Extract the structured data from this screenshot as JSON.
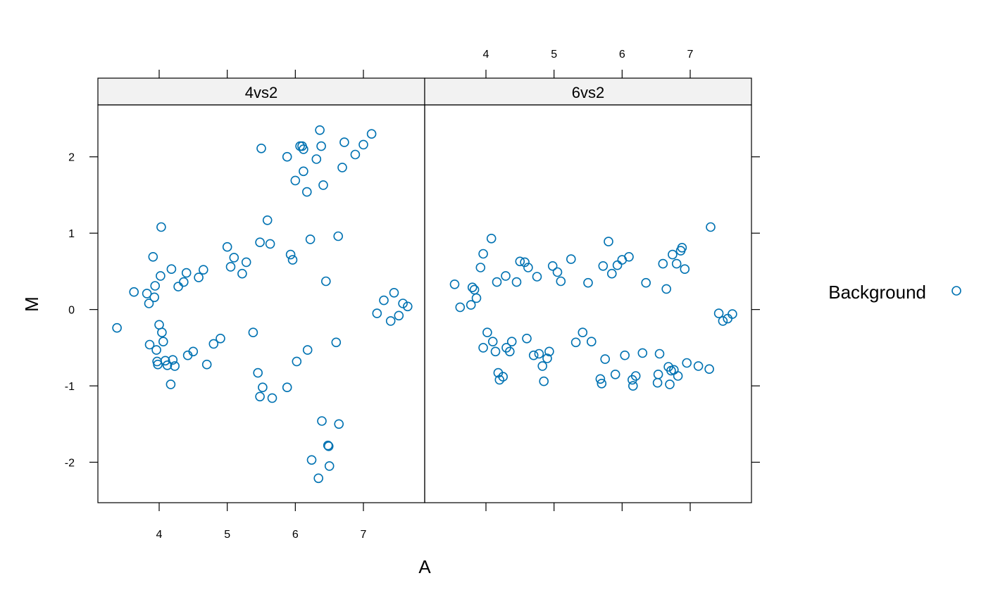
{
  "chart_data": {
    "type": "scatter",
    "xlabel": "A",
    "ylabel": "M",
    "xlim": [
      3.1,
      7.9
    ],
    "ylim": [
      -2.53,
      2.68
    ],
    "x_ticks": [
      4,
      5,
      6,
      7
    ],
    "y_ticks": [
      -2,
      -1,
      0,
      1,
      2
    ],
    "marker": "open-circle",
    "legend": {
      "position": "right",
      "entries": [
        "Background"
      ]
    },
    "colors": {
      "points": "#0072b2",
      "strip": "#f2f2f2",
      "axis": "#000000"
    },
    "panels": [
      {
        "label": "4vs2",
        "points": [
          [
            3.38,
            -0.24
          ],
          [
            3.63,
            0.23
          ],
          [
            3.82,
            0.21
          ],
          [
            3.85,
            0.08
          ],
          [
            3.86,
            -0.46
          ],
          [
            3.91,
            0.69
          ],
          [
            3.93,
            0.16
          ],
          [
            3.94,
            0.31
          ],
          [
            3.96,
            -0.53
          ],
          [
            3.97,
            -0.68
          ],
          [
            3.98,
            -0.72
          ],
          [
            4.0,
            -0.2
          ],
          [
            4.02,
            0.44
          ],
          [
            4.03,
            1.08
          ],
          [
            4.04,
            -0.3
          ],
          [
            4.06,
            -0.42
          ],
          [
            4.09,
            -0.67
          ],
          [
            4.12,
            -0.73
          ],
          [
            4.17,
            -0.98
          ],
          [
            4.18,
            0.53
          ],
          [
            4.2,
            -0.66
          ],
          [
            4.23,
            -0.74
          ],
          [
            4.28,
            0.3
          ],
          [
            4.36,
            0.36
          ],
          [
            4.4,
            0.48
          ],
          [
            4.42,
            -0.6
          ],
          [
            4.5,
            -0.55
          ],
          [
            4.58,
            0.42
          ],
          [
            4.65,
            0.52
          ],
          [
            4.7,
            -0.72
          ],
          [
            4.8,
            -0.45
          ],
          [
            4.9,
            -0.38
          ],
          [
            5.0,
            0.82
          ],
          [
            5.05,
            0.56
          ],
          [
            5.1,
            0.68
          ],
          [
            5.22,
            0.47
          ],
          [
            5.28,
            0.62
          ],
          [
            5.38,
            -0.3
          ],
          [
            5.45,
            -0.83
          ],
          [
            5.48,
            0.88
          ],
          [
            5.48,
            -1.14
          ],
          [
            5.5,
            2.11
          ],
          [
            5.52,
            -1.02
          ],
          [
            5.59,
            1.17
          ],
          [
            5.63,
            0.86
          ],
          [
            5.66,
            -1.16
          ],
          [
            5.88,
            2.0
          ],
          [
            5.88,
            -1.02
          ],
          [
            5.93,
            0.72
          ],
          [
            5.96,
            0.65
          ],
          [
            6.0,
            1.69
          ],
          [
            6.02,
            -0.68
          ],
          [
            6.07,
            2.14
          ],
          [
            6.1,
            2.14
          ],
          [
            6.12,
            2.1
          ],
          [
            6.12,
            1.81
          ],
          [
            6.17,
            1.54
          ],
          [
            6.18,
            -0.53
          ],
          [
            6.22,
            0.92
          ],
          [
            6.24,
            -1.97
          ],
          [
            6.31,
            1.97
          ],
          [
            6.34,
            -2.21
          ],
          [
            6.36,
            2.35
          ],
          [
            6.38,
            2.14
          ],
          [
            6.39,
            -1.46
          ],
          [
            6.41,
            1.63
          ],
          [
            6.45,
            0.37
          ],
          [
            6.48,
            -1.78
          ],
          [
            6.49,
            -1.79
          ],
          [
            6.5,
            -2.05
          ],
          [
            6.6,
            -0.43
          ],
          [
            6.63,
            0.96
          ],
          [
            6.64,
            -1.5
          ],
          [
            6.69,
            1.86
          ],
          [
            6.72,
            2.19
          ],
          [
            6.88,
            2.03
          ],
          [
            7.0,
            2.16
          ],
          [
            7.12,
            2.3
          ],
          [
            7.45,
            0.22
          ],
          [
            7.58,
            0.08
          ],
          [
            7.65,
            0.04
          ],
          [
            7.52,
            -0.08
          ],
          [
            7.4,
            -0.15
          ],
          [
            7.3,
            0.12
          ],
          [
            7.2,
            -0.05
          ]
        ]
      },
      {
        "label": "6vs2",
        "points": [
          [
            3.54,
            0.33
          ],
          [
            3.62,
            0.03
          ],
          [
            3.78,
            0.06
          ],
          [
            3.8,
            0.29
          ],
          [
            3.83,
            0.26
          ],
          [
            3.86,
            0.15
          ],
          [
            3.92,
            0.55
          ],
          [
            3.96,
            -0.5
          ],
          [
            3.96,
            0.73
          ],
          [
            4.02,
            -0.3
          ],
          [
            4.08,
            0.93
          ],
          [
            4.1,
            -0.42
          ],
          [
            4.14,
            -0.55
          ],
          [
            4.16,
            0.36
          ],
          [
            4.18,
            -0.83
          ],
          [
            4.2,
            -0.92
          ],
          [
            4.25,
            -0.88
          ],
          [
            4.29,
            0.44
          ],
          [
            4.3,
            -0.5
          ],
          [
            4.35,
            -0.55
          ],
          [
            4.38,
            -0.42
          ],
          [
            4.45,
            0.36
          ],
          [
            4.5,
            0.63
          ],
          [
            4.57,
            0.62
          ],
          [
            4.6,
            -0.38
          ],
          [
            4.62,
            0.55
          ],
          [
            4.7,
            -0.6
          ],
          [
            4.75,
            0.43
          ],
          [
            4.78,
            -0.58
          ],
          [
            4.83,
            -0.74
          ],
          [
            4.85,
            -0.94
          ],
          [
            4.9,
            -0.64
          ],
          [
            4.93,
            -0.55
          ],
          [
            4.98,
            0.57
          ],
          [
            5.05,
            0.49
          ],
          [
            5.1,
            0.37
          ],
          [
            5.25,
            0.66
          ],
          [
            5.32,
            -0.43
          ],
          [
            5.42,
            -0.3
          ],
          [
            5.5,
            0.35
          ],
          [
            5.55,
            -0.42
          ],
          [
            5.68,
            -0.91
          ],
          [
            5.7,
            -0.97
          ],
          [
            5.72,
            0.57
          ],
          [
            5.75,
            -0.65
          ],
          [
            5.8,
            0.89
          ],
          [
            5.85,
            0.47
          ],
          [
            5.9,
            -0.85
          ],
          [
            5.93,
            0.58
          ],
          [
            6.0,
            0.65
          ],
          [
            6.04,
            -0.6
          ],
          [
            6.1,
            0.69
          ],
          [
            6.15,
            -0.92
          ],
          [
            6.16,
            -1.0
          ],
          [
            6.2,
            -0.87
          ],
          [
            6.3,
            -0.57
          ],
          [
            6.35,
            0.35
          ],
          [
            6.52,
            -0.96
          ],
          [
            6.53,
            -0.85
          ],
          [
            6.55,
            -0.58
          ],
          [
            6.6,
            0.6
          ],
          [
            6.65,
            0.27
          ],
          [
            6.68,
            -0.75
          ],
          [
            6.7,
            -0.98
          ],
          [
            6.72,
            -0.8
          ],
          [
            6.74,
            0.72
          ],
          [
            6.76,
            -0.79
          ],
          [
            6.8,
            0.6
          ],
          [
            6.82,
            -0.87
          ],
          [
            6.86,
            0.77
          ],
          [
            6.88,
            0.81
          ],
          [
            6.92,
            0.53
          ],
          [
            6.95,
            -0.7
          ],
          [
            7.12,
            -0.74
          ],
          [
            7.28,
            -0.78
          ],
          [
            7.3,
            1.08
          ],
          [
            7.48,
            -0.15
          ],
          [
            7.55,
            -0.12
          ],
          [
            7.42,
            -0.05
          ],
          [
            7.62,
            -0.06
          ]
        ]
      }
    ]
  }
}
